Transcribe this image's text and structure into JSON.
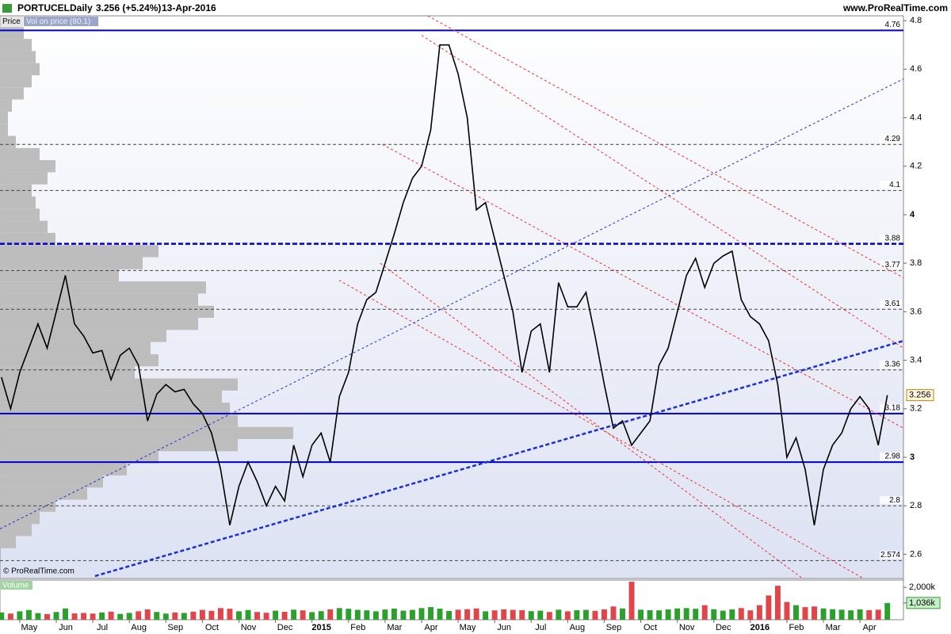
{
  "chart_data": {
    "type": "line",
    "symbol": "PORTUCEL",
    "period": "Daily",
    "quote": "3.256 (+5.24%)",
    "date": "13-Apr-2016",
    "source": "www.ProRealTime.com",
    "copyright": "© ProRealTime.com",
    "panel_label": "Price",
    "profile_label": "Vol on price (80.1)",
    "volume_label": "Volume",
    "xlim": [
      -0.54,
      24.19
    ],
    "xticks": [
      {
        "value": 0,
        "label": "May"
      },
      {
        "value": 1,
        "label": "Jun"
      },
      {
        "value": 2,
        "label": "Jul"
      },
      {
        "value": 3,
        "label": "Aug"
      },
      {
        "value": 4,
        "label": "Sep"
      },
      {
        "value": 5,
        "label": "Oct"
      },
      {
        "value": 6,
        "label": "Nov"
      },
      {
        "value": 7,
        "label": "Dec"
      },
      {
        "value": 8,
        "label": "2015"
      },
      {
        "value": 9,
        "label": "Feb"
      },
      {
        "value": 10,
        "label": "Mar"
      },
      {
        "value": 11,
        "label": "Apr"
      },
      {
        "value": 12,
        "label": "May"
      },
      {
        "value": 13,
        "label": "Jun"
      },
      {
        "value": 14,
        "label": "Jul"
      },
      {
        "value": 15,
        "label": "Aug"
      },
      {
        "value": 16,
        "label": "Sep"
      },
      {
        "value": 17,
        "label": "Oct"
      },
      {
        "value": 18,
        "label": "Nov"
      },
      {
        "value": 19,
        "label": "Dec"
      },
      {
        "value": 20,
        "label": "2016"
      },
      {
        "value": 21,
        "label": "Feb"
      },
      {
        "value": 22,
        "label": "Mar"
      },
      {
        "value": 23,
        "label": "Apr"
      }
    ],
    "ylim": [
      2.5,
      4.82
    ],
    "yticks": [
      2.6,
      2.8,
      3,
      3.2,
      3.4,
      3.6,
      3.8,
      4,
      4.2,
      4.4,
      4.6,
      4.8
    ],
    "x": [
      -0.5,
      -0.25,
      0,
      0.25,
      0.5,
      0.75,
      1,
      1.25,
      1.5,
      1.75,
      2,
      2.25,
      2.5,
      2.75,
      3,
      3.25,
      3.5,
      3.75,
      4,
      4.25,
      4.5,
      4.75,
      5,
      5.25,
      5.5,
      5.75,
      6,
      6.25,
      6.5,
      6.75,
      7,
      7.25,
      7.5,
      7.75,
      8,
      8.25,
      8.5,
      8.75,
      9,
      9.25,
      9.5,
      9.75,
      10,
      10.25,
      10.5,
      10.75,
      11,
      11.25,
      11.5,
      11.75,
      12,
      12.25,
      12.5,
      12.75,
      13,
      13.25,
      13.5,
      13.75,
      14,
      14.25,
      14.5,
      14.75,
      15,
      15.25,
      15.5,
      15.75,
      16,
      16.25,
      16.5,
      16.75,
      17,
      17.25,
      17.5,
      17.75,
      18,
      18.25,
      18.5,
      18.75,
      19,
      19.25,
      19.5,
      19.75,
      20,
      20.25,
      20.5,
      20.75,
      21,
      21.25,
      21.5,
      21.75,
      22,
      22.25,
      22.5,
      22.75,
      23,
      23.25,
      23.5,
      23.75
    ],
    "series": [
      {
        "color": "#000000",
        "values": [
          3.33,
          3.2,
          3.35,
          3.45,
          3.55,
          3.45,
          3.6,
          3.75,
          3.55,
          3.5,
          3.43,
          3.44,
          3.32,
          3.42,
          3.45,
          3.38,
          3.15,
          3.26,
          3.3,
          3.27,
          3.28,
          3.22,
          3.18,
          3.1,
          2.95,
          2.72,
          2.88,
          2.98,
          2.9,
          2.8,
          2.88,
          2.82,
          3.05,
          2.92,
          3.05,
          3.1,
          2.98,
          3.25,
          3.35,
          3.55,
          3.65,
          3.68,
          3.8,
          3.92,
          4.05,
          4.15,
          4.2,
          4.35,
          4.7,
          4.7,
          4.58,
          4.4,
          4.02,
          4.05,
          3.9,
          3.75,
          3.6,
          3.35,
          3.52,
          3.55,
          3.35,
          3.72,
          3.62,
          3.62,
          3.68,
          3.5,
          3.3,
          3.12,
          3.15,
          3.05,
          3.1,
          3.15,
          3.38,
          3.45,
          3.6,
          3.75,
          3.82,
          3.7,
          3.8,
          3.83,
          3.85,
          3.65,
          3.58,
          3.55,
          3.48,
          3.3,
          3.0,
          3.08,
          2.95,
          2.72,
          2.95,
          3.05,
          3.1,
          3.2,
          3.25,
          3.2,
          3.05,
          3.256
        ]
      }
    ],
    "levels": [
      {
        "value": 4.76,
        "style": "solid"
      },
      {
        "value": 4.29,
        "style": "dashed"
      },
      {
        "value": 4.1,
        "style": "dashed"
      },
      {
        "value": 3.88,
        "style": "bold-dashed"
      },
      {
        "value": 3.77,
        "style": "dashed"
      },
      {
        "value": 3.61,
        "style": "dashed"
      },
      {
        "value": 3.36,
        "style": "dashed"
      },
      {
        "value": 3.18,
        "style": "solid"
      },
      {
        "value": 2.98,
        "style": "solid"
      },
      {
        "value": 2.8,
        "style": "dashed"
      },
      {
        "value": 2.574,
        "style": "dashed"
      }
    ],
    "level_color": "#0000cc",
    "dash_color": "#444444",
    "trendlines": [
      {
        "x": [
          11.17,
          24.19
        ],
        "y": [
          4.82,
          3.74
        ],
        "color": "#e8302a",
        "width": 1
      },
      {
        "x": [
          11.0,
          24.19
        ],
        "y": [
          4.74,
          3.45
        ],
        "color": "#e8302a",
        "width": 1
      },
      {
        "x": [
          9.93,
          24.19
        ],
        "y": [
          4.29,
          3.12
        ],
        "color": "#e8302a",
        "width": 1
      },
      {
        "x": [
          9.87,
          21.43
        ],
        "y": [
          3.8,
          2.5
        ],
        "color": "#e8302a",
        "width": 1
      },
      {
        "x": [
          8.74,
          23.1
        ],
        "y": [
          3.73,
          2.5
        ],
        "color": "#e8302a",
        "width": 1
      },
      {
        "x": [
          -0.54,
          24.19
        ],
        "y": [
          2.705,
          4.56
        ],
        "color": "#2233cc",
        "width": 1
      },
      {
        "x": [
          2.06,
          24.19
        ],
        "y": [
          2.51,
          3.48
        ],
        "color": "#1a2fd6",
        "width": 2.5
      }
    ],
    "profile": {
      "color": "#bdbdbd",
      "step": 0.05,
      "price": [
        2.65,
        2.7,
        2.75,
        2.8,
        2.85,
        2.9,
        2.95,
        3.0,
        3.05,
        3.1,
        3.15,
        3.2,
        3.25,
        3.3,
        3.35,
        3.4,
        3.45,
        3.5,
        3.55,
        3.6,
        3.65,
        3.7,
        3.75,
        3.8,
        3.85,
        3.9,
        3.95,
        4.0,
        4.05,
        4.1,
        4.15,
        4.2,
        4.25,
        4.3,
        4.35,
        4.4,
        4.45,
        4.5,
        4.55,
        4.6,
        4.65,
        4.7,
        4.75
      ],
      "values": [
        20,
        40,
        50,
        70,
        110,
        130,
        160,
        200,
        300,
        370,
        300,
        290,
        280,
        300,
        170,
        200,
        190,
        210,
        250,
        270,
        250,
        260,
        150,
        180,
        200,
        70,
        60,
        50,
        45,
        40,
        60,
        70,
        50,
        20,
        10,
        10,
        15,
        30,
        40,
        50,
        45,
        40,
        30
      ]
    },
    "volume": {
      "up_color": "#2ca02c",
      "down_color": "#e0454a",
      "ylim": [
        0,
        2400
      ],
      "yticks": [
        {
          "value": 2000,
          "label": "2,000k"
        },
        {
          "value": 1036,
          "label": "1,036k"
        }
      ],
      "values": [
        450,
        380,
        520,
        600,
        410,
        350,
        480,
        700,
        390,
        420,
        380,
        450,
        500,
        360,
        420,
        520,
        640,
        480,
        380,
        450,
        420,
        500,
        610,
        550,
        720,
        680,
        520,
        600,
        480,
        430,
        560,
        490,
        620,
        580,
        470,
        530,
        640,
        720,
        680,
        610,
        580,
        520,
        630,
        690,
        560,
        610,
        720,
        780,
        690,
        540,
        620,
        650,
        700,
        520,
        580,
        640,
        610,
        590,
        530,
        560,
        480,
        620,
        520,
        590,
        610,
        550,
        640,
        820,
        700,
        2350,
        620,
        590,
        580,
        640,
        700,
        720,
        680,
        900,
        650,
        560,
        640,
        720,
        580,
        900,
        1500,
        2100,
        1100,
        900,
        780,
        820,
        700,
        650,
        620,
        580,
        640,
        590,
        620,
        1036
      ]
    }
  }
}
